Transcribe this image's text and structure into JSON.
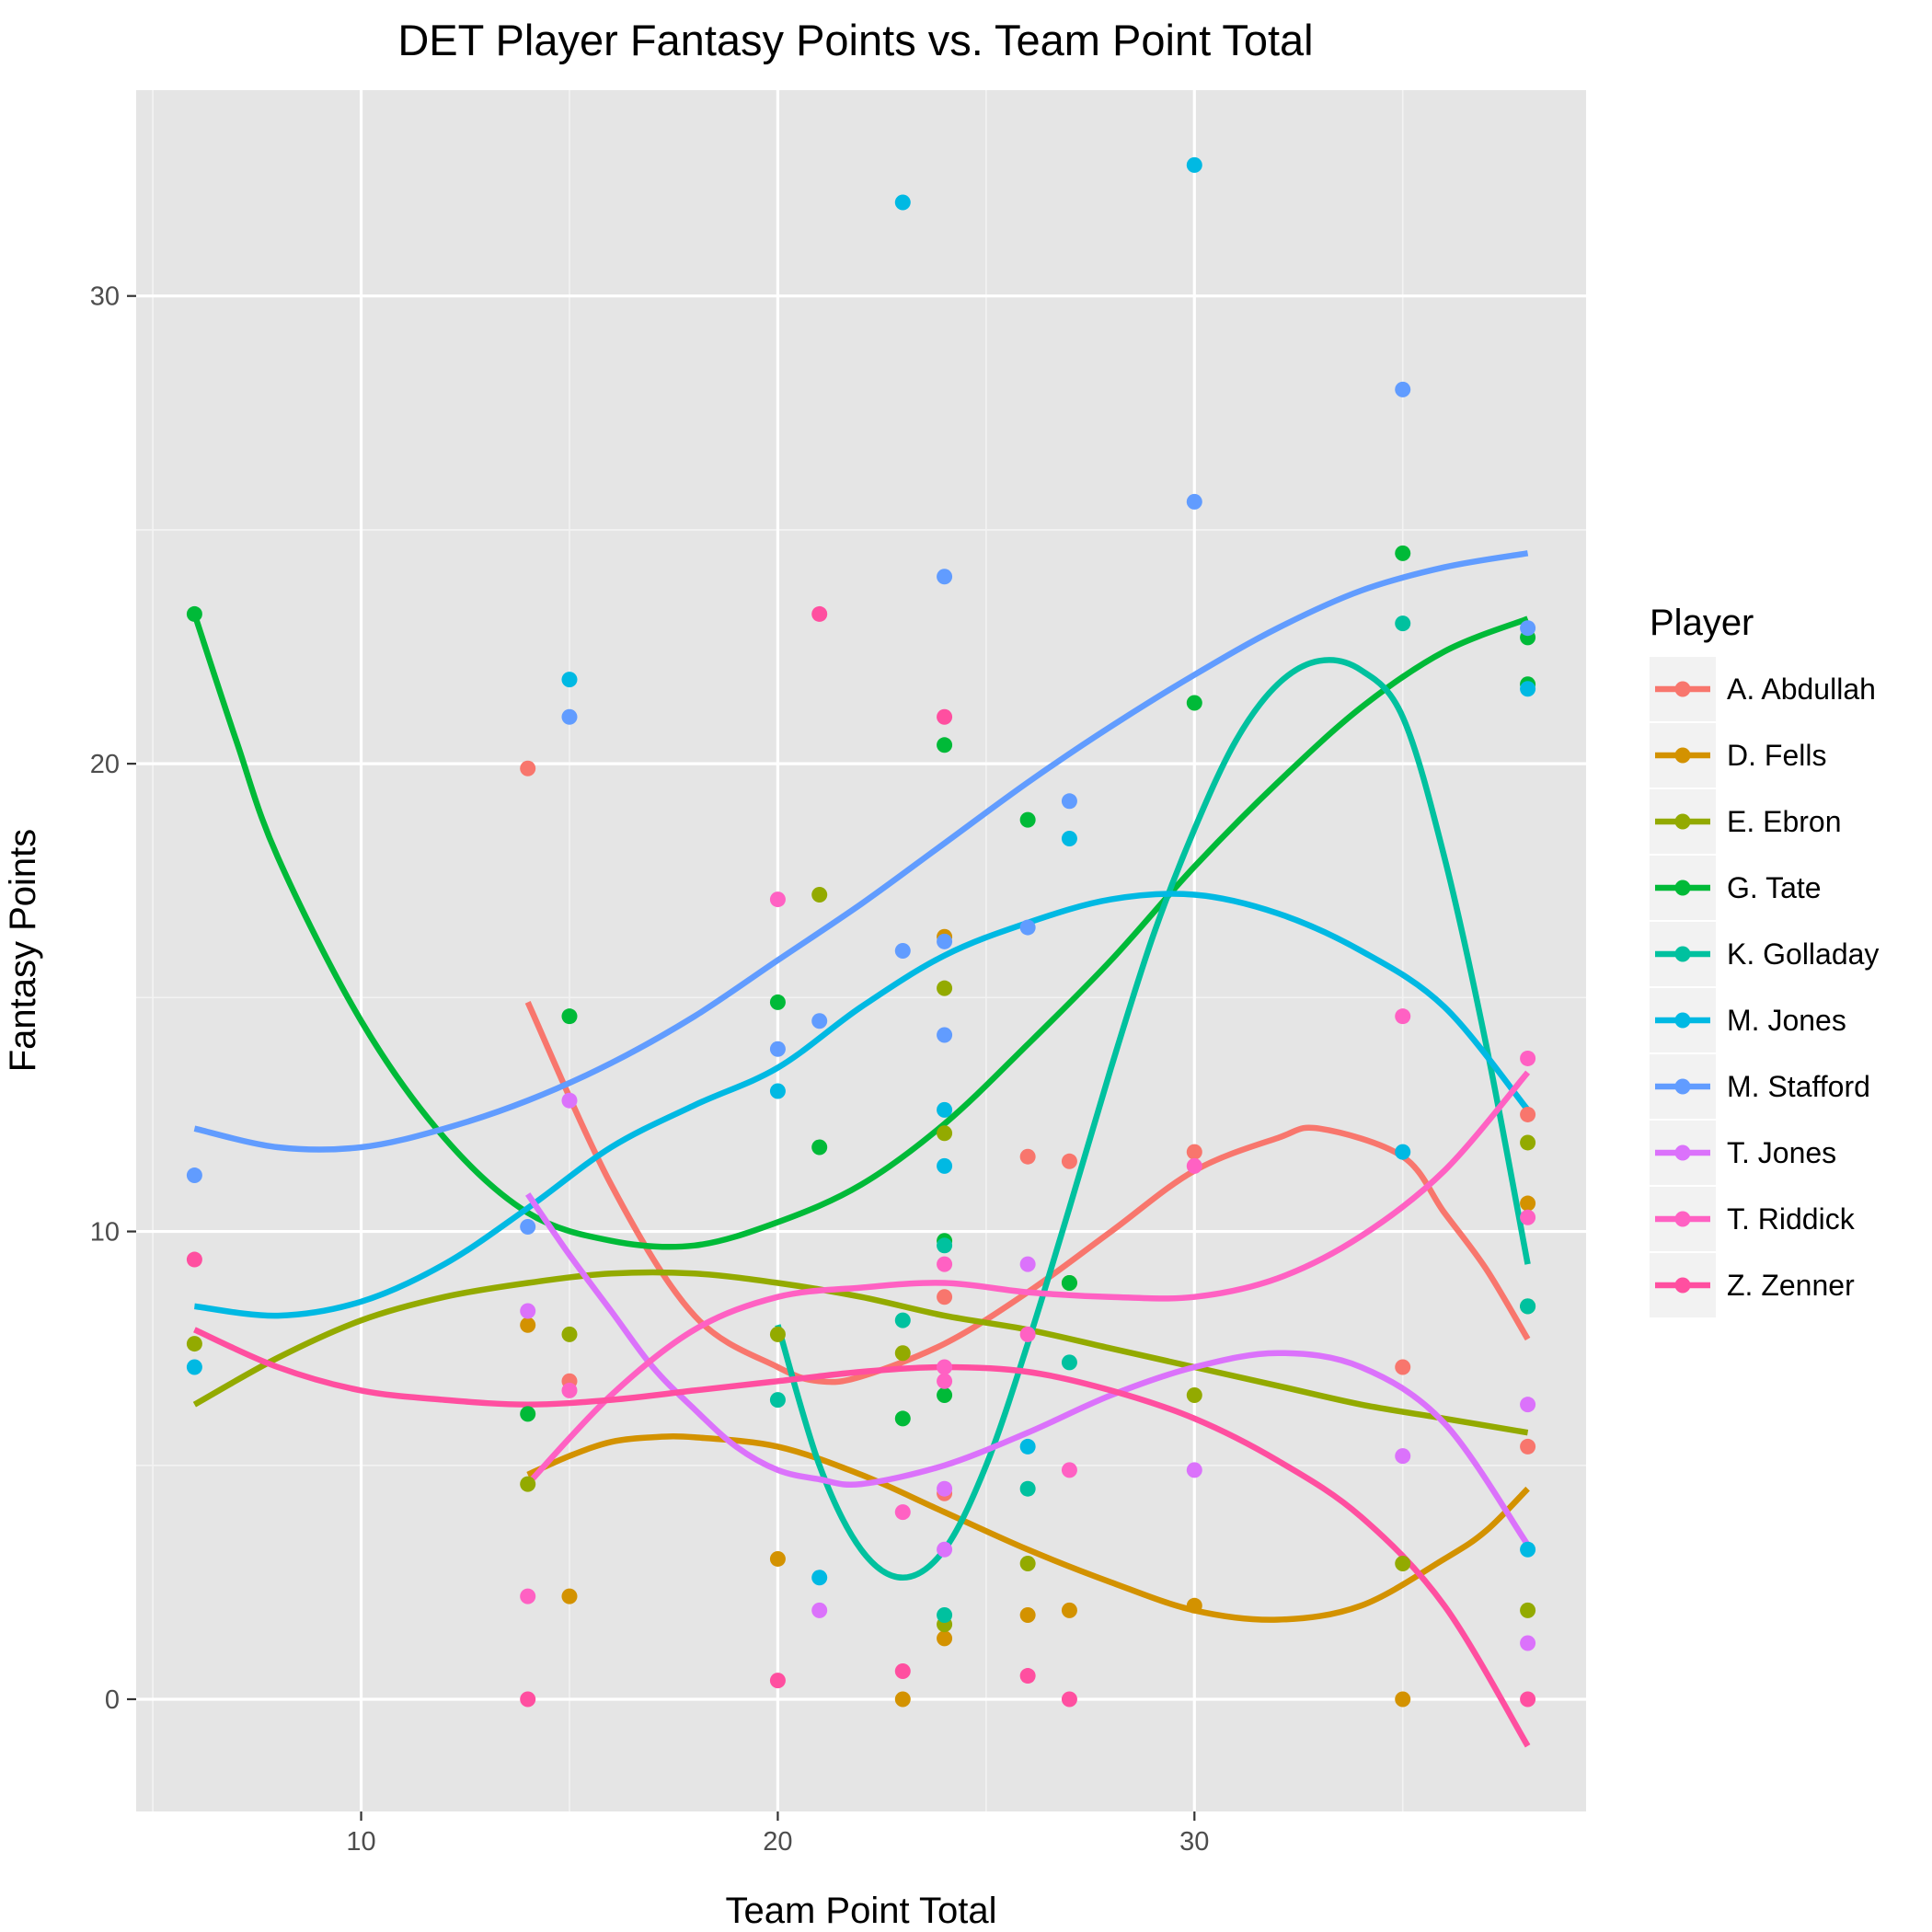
{
  "chart_data": {
    "type": "scatter",
    "title": "DET Player Fantasy Points vs. Team Point Total",
    "xlabel": "Team Point Total",
    "ylabel": "Fantasy Points",
    "xlim": [
      4.6,
      39.4
    ],
    "ylim": [
      -2.4,
      34.4
    ],
    "xticks": [
      10,
      20,
      30
    ],
    "yticks": [
      0,
      10,
      20,
      30
    ],
    "grid": true,
    "legend": {
      "title": "Player",
      "position": "right"
    },
    "series": [
      {
        "name": "A. Abdullah",
        "color": "#F8766D",
        "points": [
          [
            14,
            19.9
          ],
          [
            15,
            6.8
          ],
          [
            24,
            8.6
          ],
          [
            24,
            4.4
          ],
          [
            26,
            11.6
          ],
          [
            27,
            11.5
          ],
          [
            30,
            11.7
          ],
          [
            35,
            7.1
          ],
          [
            38,
            12.5
          ],
          [
            38,
            5.4
          ]
        ],
        "smooth": [
          [
            14,
            14.9
          ],
          [
            16,
            11.0
          ],
          [
            18,
            8.2
          ],
          [
            20,
            7.1
          ],
          [
            21,
            6.8
          ],
          [
            22,
            6.9
          ],
          [
            24,
            7.6
          ],
          [
            26,
            8.7
          ],
          [
            28,
            10.0
          ],
          [
            30,
            11.3
          ],
          [
            32,
            12.0
          ],
          [
            33,
            12.2
          ],
          [
            35,
            11.6
          ],
          [
            36,
            10.4
          ],
          [
            37,
            9.2
          ],
          [
            38,
            7.7
          ]
        ]
      },
      {
        "name": "D. Fells",
        "color": "#D39200",
        "points": [
          [
            14,
            8.0
          ],
          [
            15,
            2.2
          ],
          [
            20,
            3.0
          ],
          [
            23,
            0.0
          ],
          [
            24,
            16.3
          ],
          [
            24,
            1.3
          ],
          [
            26,
            1.8
          ],
          [
            27,
            1.9
          ],
          [
            30,
            2.0
          ],
          [
            35,
            0.0
          ],
          [
            38,
            10.6
          ]
        ],
        "smooth": [
          [
            14,
            4.8
          ],
          [
            15,
            5.2
          ],
          [
            16,
            5.5
          ],
          [
            17,
            5.6
          ],
          [
            18,
            5.6
          ],
          [
            20,
            5.4
          ],
          [
            22,
            4.8
          ],
          [
            24,
            4.0
          ],
          [
            26,
            3.2
          ],
          [
            28,
            2.5
          ],
          [
            30,
            1.9
          ],
          [
            32,
            1.7
          ],
          [
            34,
            2.0
          ],
          [
            36,
            3.0
          ],
          [
            37,
            3.6
          ],
          [
            38,
            4.5
          ]
        ]
      },
      {
        "name": "E. Ebron",
        "color": "#93AA00",
        "points": [
          [
            6,
            7.6
          ],
          [
            14,
            4.6
          ],
          [
            15,
            7.8
          ],
          [
            20,
            7.8
          ],
          [
            21,
            17.2
          ],
          [
            23,
            7.4
          ],
          [
            24,
            15.2
          ],
          [
            24,
            12.1
          ],
          [
            24,
            1.6
          ],
          [
            26,
            2.9
          ],
          [
            27,
            8.9
          ],
          [
            30,
            6.5
          ],
          [
            35,
            2.9
          ],
          [
            38,
            11.9
          ],
          [
            38,
            1.9
          ]
        ],
        "smooth": [
          [
            6,
            6.3
          ],
          [
            8,
            7.3
          ],
          [
            10,
            8.1
          ],
          [
            12,
            8.6
          ],
          [
            14,
            8.9
          ],
          [
            16,
            9.1
          ],
          [
            18,
            9.1
          ],
          [
            20,
            8.9
          ],
          [
            22,
            8.6
          ],
          [
            24,
            8.2
          ],
          [
            26,
            7.9
          ],
          [
            28,
            7.5
          ],
          [
            30,
            7.1
          ],
          [
            32,
            6.7
          ],
          [
            34,
            6.3
          ],
          [
            36,
            6.0
          ],
          [
            38,
            5.7
          ]
        ]
      },
      {
        "name": "G. Tate",
        "color": "#00BA38",
        "points": [
          [
            6,
            23.2
          ],
          [
            14,
            6.1
          ],
          [
            15,
            14.6
          ],
          [
            20,
            14.9
          ],
          [
            21,
            11.8
          ],
          [
            23,
            6.0
          ],
          [
            24,
            20.4
          ],
          [
            24,
            9.8
          ],
          [
            24,
            6.5
          ],
          [
            26,
            18.8
          ],
          [
            27,
            8.9
          ],
          [
            30,
            21.3
          ],
          [
            35,
            24.5
          ],
          [
            38,
            22.7
          ],
          [
            38,
            21.7
          ],
          [
            38,
            8.4
          ]
        ],
        "smooth": [
          [
            6,
            23.2
          ],
          [
            7,
            20.5
          ],
          [
            8,
            18.0
          ],
          [
            10,
            14.5
          ],
          [
            12,
            12.0
          ],
          [
            14,
            10.4
          ],
          [
            16,
            9.8
          ],
          [
            18,
            9.7
          ],
          [
            20,
            10.2
          ],
          [
            22,
            11.0
          ],
          [
            24,
            12.3
          ],
          [
            26,
            14.0
          ],
          [
            28,
            15.8
          ],
          [
            30,
            17.8
          ],
          [
            32,
            19.6
          ],
          [
            34,
            21.2
          ],
          [
            36,
            22.4
          ],
          [
            38,
            23.1
          ]
        ]
      },
      {
        "name": "K. Golladay",
        "color": "#00C19F",
        "points": [
          [
            20,
            6.4
          ],
          [
            23,
            8.1
          ],
          [
            24,
            9.7
          ],
          [
            24,
            1.8
          ],
          [
            26,
            4.5
          ],
          [
            27,
            7.2
          ],
          [
            35,
            23.0
          ],
          [
            38,
            8.4
          ]
        ],
        "smooth": [
          [
            20,
            8.0
          ],
          [
            21,
            5.0
          ],
          [
            22,
            3.2
          ],
          [
            23,
            2.6
          ],
          [
            24,
            3.2
          ],
          [
            25,
            5.0
          ],
          [
            26,
            7.6
          ],
          [
            27,
            10.5
          ],
          [
            28,
            13.5
          ],
          [
            29,
            16.3
          ],
          [
            30,
            18.6
          ],
          [
            31,
            20.5
          ],
          [
            32,
            21.7
          ],
          [
            33,
            22.2
          ],
          [
            34,
            22.0
          ],
          [
            35,
            21.0
          ],
          [
            36,
            18.0
          ],
          [
            37,
            14.0
          ],
          [
            38,
            9.3
          ]
        ]
      },
      {
        "name": "M. Jones",
        "color": "#00B9E3",
        "points": [
          [
            6,
            7.1
          ],
          [
            15,
            21.8
          ],
          [
            20,
            13.0
          ],
          [
            21,
            2.6
          ],
          [
            23,
            32.0
          ],
          [
            24,
            12.6
          ],
          [
            24,
            11.4
          ],
          [
            26,
            5.4
          ],
          [
            27,
            18.4
          ],
          [
            30,
            32.8
          ],
          [
            35,
            11.7
          ],
          [
            38,
            21.6
          ],
          [
            38,
            3.2
          ]
        ],
        "smooth": [
          [
            6,
            8.4
          ],
          [
            8,
            8.2
          ],
          [
            10,
            8.5
          ],
          [
            12,
            9.3
          ],
          [
            14,
            10.5
          ],
          [
            16,
            11.8
          ],
          [
            18,
            12.7
          ],
          [
            20,
            13.5
          ],
          [
            22,
            14.8
          ],
          [
            24,
            15.9
          ],
          [
            26,
            16.6
          ],
          [
            28,
            17.1
          ],
          [
            30,
            17.2
          ],
          [
            32,
            16.8
          ],
          [
            34,
            16.0
          ],
          [
            36,
            14.8
          ],
          [
            38,
            12.6
          ]
        ]
      },
      {
        "name": "M. Stafford",
        "color": "#619CFF",
        "points": [
          [
            6,
            11.2
          ],
          [
            14,
            10.1
          ],
          [
            15,
            21.0
          ],
          [
            20,
            13.9
          ],
          [
            21,
            14.5
          ],
          [
            23,
            16.0
          ],
          [
            24,
            24.0
          ],
          [
            24,
            16.2
          ],
          [
            24,
            14.2
          ],
          [
            26,
            16.5
          ],
          [
            27,
            19.2
          ],
          [
            30,
            25.6
          ],
          [
            35,
            28.0
          ],
          [
            38,
            22.9
          ]
        ],
        "smooth": [
          [
            6,
            12.2
          ],
          [
            8,
            11.8
          ],
          [
            10,
            11.8
          ],
          [
            12,
            12.2
          ],
          [
            14,
            12.8
          ],
          [
            16,
            13.6
          ],
          [
            18,
            14.6
          ],
          [
            20,
            15.8
          ],
          [
            22,
            17.0
          ],
          [
            24,
            18.3
          ],
          [
            26,
            19.6
          ],
          [
            28,
            20.8
          ],
          [
            30,
            21.9
          ],
          [
            32,
            22.9
          ],
          [
            34,
            23.7
          ],
          [
            36,
            24.2
          ],
          [
            38,
            24.5
          ]
        ]
      },
      {
        "name": "T. Jones",
        "color": "#DB72FB",
        "points": [
          [
            14,
            8.3
          ],
          [
            15,
            12.8
          ],
          [
            21,
            1.9
          ],
          [
            24,
            4.5
          ],
          [
            24,
            3.2
          ],
          [
            26,
            9.3
          ],
          [
            30,
            4.9
          ],
          [
            35,
            5.2
          ],
          [
            38,
            6.3
          ],
          [
            38,
            1.2
          ]
        ],
        "smooth": [
          [
            14,
            10.8
          ],
          [
            15,
            9.5
          ],
          [
            16,
            8.3
          ],
          [
            17,
            7.1
          ],
          [
            18,
            6.2
          ],
          [
            19,
            5.4
          ],
          [
            20,
            4.9
          ],
          [
            21,
            4.7
          ],
          [
            22,
            4.6
          ],
          [
            24,
            5.0
          ],
          [
            26,
            5.7
          ],
          [
            28,
            6.5
          ],
          [
            30,
            7.1
          ],
          [
            32,
            7.4
          ],
          [
            34,
            7.1
          ],
          [
            36,
            5.9
          ],
          [
            38,
            3.3
          ]
        ]
      },
      {
        "name": "T. Riddick",
        "color": "#FF61C3",
        "points": [
          [
            14,
            2.2
          ],
          [
            15,
            6.6
          ],
          [
            20,
            17.1
          ],
          [
            23,
            4.0
          ],
          [
            24,
            9.3
          ],
          [
            24,
            7.1
          ],
          [
            24,
            6.8
          ],
          [
            26,
            7.8
          ],
          [
            27,
            4.9
          ],
          [
            30,
            11.4
          ],
          [
            35,
            14.6
          ],
          [
            38,
            13.7
          ],
          [
            38,
            10.3
          ]
        ],
        "smooth": [
          [
            14,
            4.6
          ],
          [
            16,
            6.5
          ],
          [
            18,
            7.9
          ],
          [
            20,
            8.6
          ],
          [
            22,
            8.8
          ],
          [
            24,
            8.9
          ],
          [
            26,
            8.7
          ],
          [
            28,
            8.6
          ],
          [
            30,
            8.6
          ],
          [
            32,
            9.0
          ],
          [
            34,
            9.9
          ],
          [
            36,
            11.3
          ],
          [
            38,
            13.4
          ]
        ]
      },
      {
        "name": "Z. Zenner",
        "color": "#FF4FA0",
        "points": [
          [
            6,
            9.4
          ],
          [
            14,
            0.0
          ],
          [
            20,
            0.4
          ],
          [
            21,
            23.2
          ],
          [
            23,
            0.6
          ],
          [
            24,
            21.0
          ],
          [
            26,
            0.5
          ],
          [
            27,
            0.0
          ],
          [
            38,
            0.0
          ]
        ],
        "smooth": [
          [
            6,
            7.9
          ],
          [
            8,
            7.1
          ],
          [
            10,
            6.6
          ],
          [
            12,
            6.4
          ],
          [
            14,
            6.3
          ],
          [
            16,
            6.4
          ],
          [
            18,
            6.6
          ],
          [
            20,
            6.8
          ],
          [
            22,
            7.0
          ],
          [
            24,
            7.1
          ],
          [
            26,
            7.0
          ],
          [
            28,
            6.6
          ],
          [
            30,
            6.0
          ],
          [
            32,
            5.1
          ],
          [
            34,
            3.9
          ],
          [
            36,
            2.0
          ],
          [
            38,
            -1.0
          ]
        ]
      }
    ]
  }
}
